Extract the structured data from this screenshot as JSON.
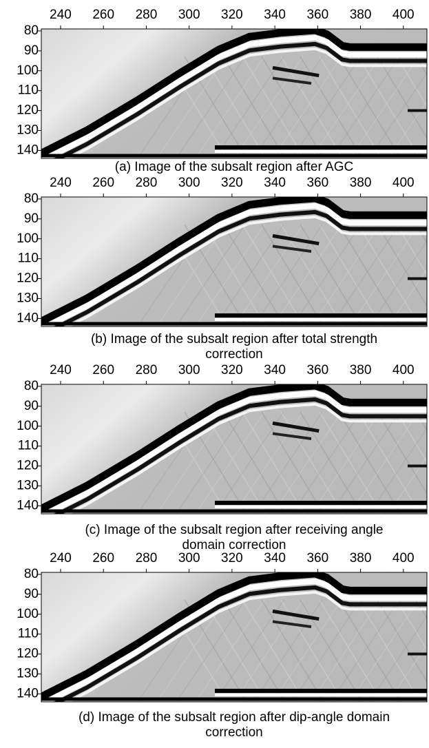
{
  "panels": [
    {
      "caption": "(a) Image of the subsalt region after AGC",
      "xlim": [
        231,
        411
      ],
      "ylim": [
        79,
        144
      ],
      "xticks": [
        240,
        260,
        280,
        300,
        320,
        340,
        360,
        380,
        400
      ],
      "yticks": [
        80,
        90,
        100,
        110,
        120,
        130,
        140
      ]
    },
    {
      "caption": "(b) Image of the subsalt region after total strength correction",
      "xlim": [
        231,
        411
      ],
      "ylim": [
        79,
        144
      ],
      "xticks": [
        240,
        260,
        280,
        300,
        320,
        340,
        360,
        380,
        400
      ],
      "yticks": [
        80,
        90,
        100,
        110,
        120,
        130,
        140
      ]
    },
    {
      "caption": "(c) Image of the subsalt region after receiving angle domain correction",
      "xlim": [
        231,
        411
      ],
      "ylim": [
        79,
        144
      ],
      "xticks": [
        240,
        260,
        280,
        300,
        320,
        340,
        360,
        380,
        400
      ],
      "yticks": [
        80,
        90,
        100,
        110,
        120,
        130,
        140
      ]
    },
    {
      "caption": "(d) Image of the subsalt region after dip-angle domain correction",
      "xlim": [
        231,
        411
      ],
      "ylim": [
        79,
        144
      ],
      "xticks": [
        240,
        260,
        280,
        300,
        320,
        340,
        360,
        380,
        400
      ],
      "yticks": [
        80,
        90,
        100,
        110,
        120,
        130,
        140
      ]
    }
  ]
}
